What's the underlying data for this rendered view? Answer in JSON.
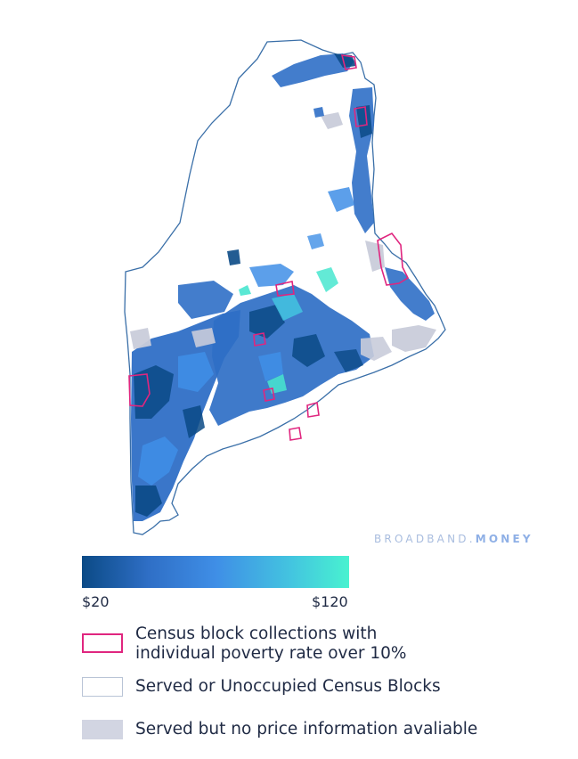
{
  "map": {
    "colors": {
      "outline": "#3a6fa8",
      "dark_blue": "#0b4a86",
      "mid_blue": "#2f6fc6",
      "light_blue": "#3f8ee6",
      "teal": "#48e6cf",
      "served_no_price": "#c9ccda",
      "poverty_outline": "#e0267f"
    }
  },
  "brand": {
    "part1": "BROADBAND.",
    "part2": "MONEY"
  },
  "scale": {
    "min_label": "$20",
    "max_label": "$120",
    "min_color": "#0b4a86",
    "max_color": "#48f2d0"
  },
  "legend": {
    "poverty": {
      "label_line1": "Census block collections with",
      "label_line2": "individual poverty rate over 10%"
    },
    "served": {
      "label": "Served or Unoccupied Census Blocks"
    },
    "no_price": {
      "label": "Served but no price information avaliable"
    }
  }
}
